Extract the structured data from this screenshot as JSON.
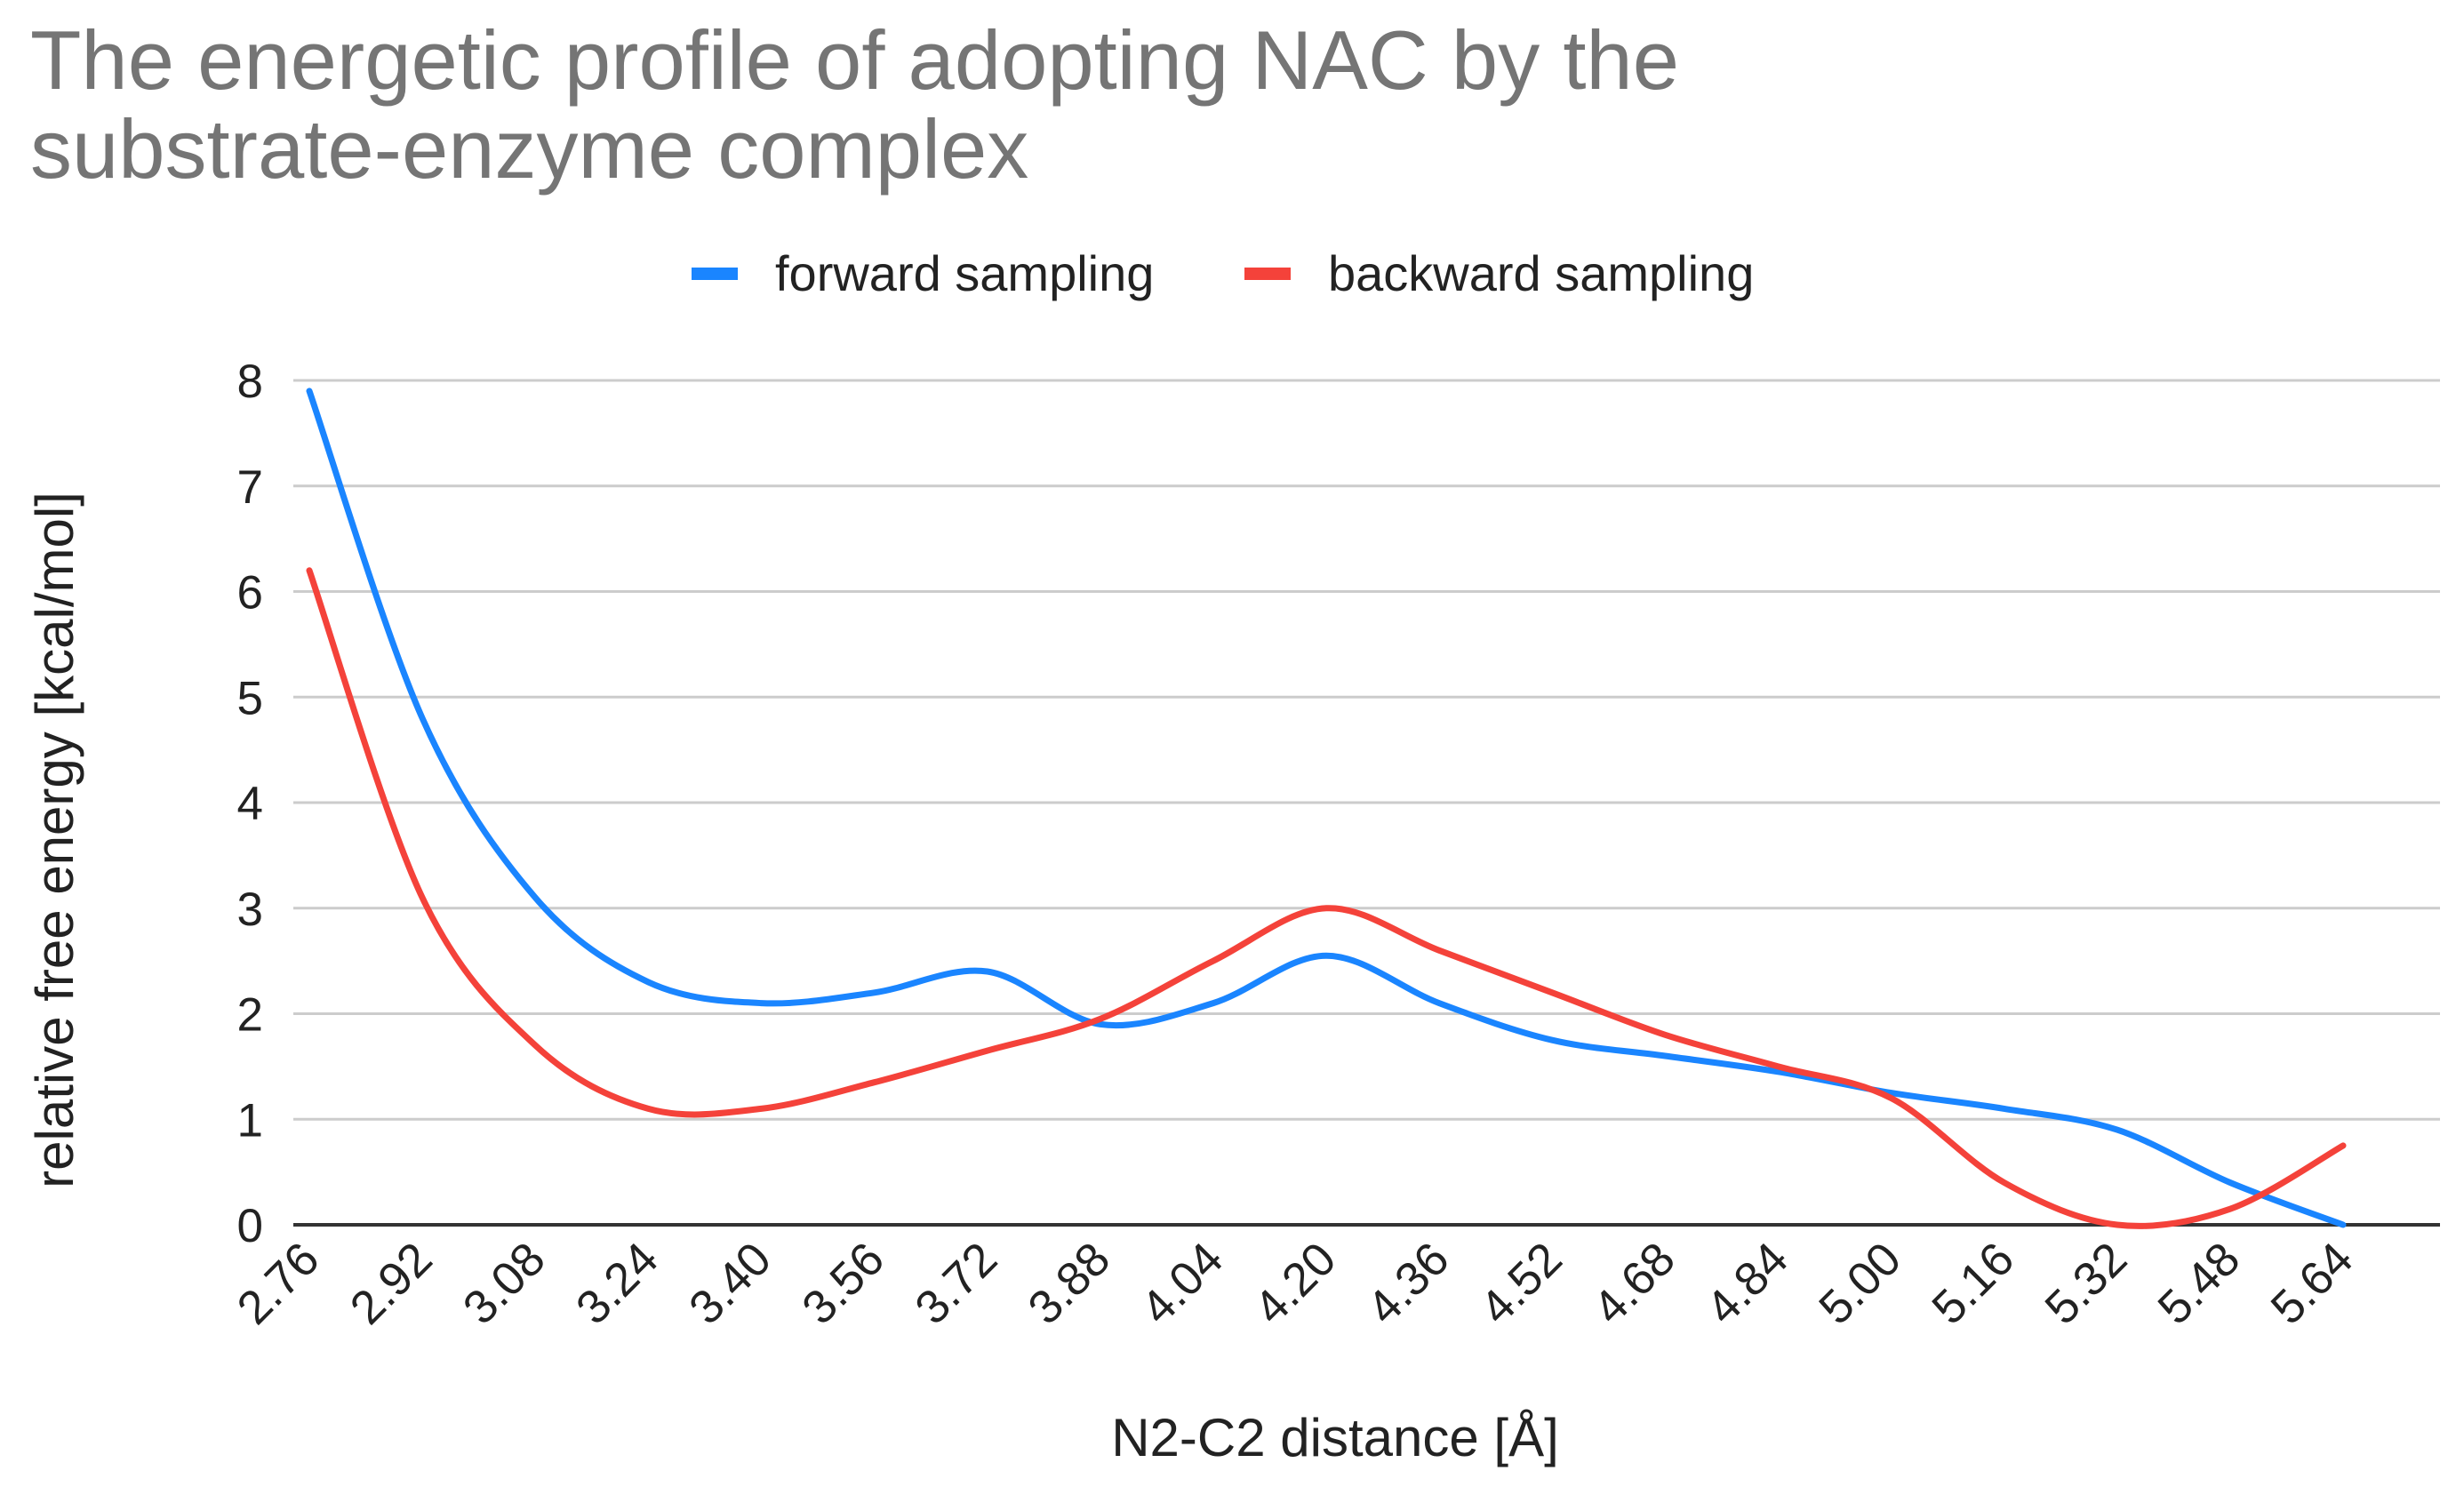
{
  "chart_data": {
    "type": "line",
    "title": "The energetic profile of adopting NAC by the substrate-enzyme complex",
    "title_lines": [
      "The energetic profile of adopting NAC by the",
      "substrate-enzyme complex"
    ],
    "xlabel": "N2-C2 distance [Å]",
    "ylabel": "relative free energy [kcal/mol]",
    "x": [
      2.76,
      2.92,
      3.08,
      3.24,
      3.4,
      3.56,
      3.72,
      3.88,
      4.04,
      4.2,
      4.36,
      4.52,
      4.68,
      4.84,
      5.0,
      5.16,
      5.32,
      5.48,
      5.64
    ],
    "x_labels": [
      "2.76",
      "2.92",
      "3.08",
      "3.24",
      "3.40",
      "3.56",
      "3.72",
      "3.88",
      "4.04",
      "4.20",
      "4.36",
      "4.52",
      "4.68",
      "4.84",
      "5.00",
      "5.16",
      "5.32",
      "5.48",
      "5.64"
    ],
    "xlim": [
      2.76,
      5.64
    ],
    "ylim": [
      0,
      8
    ],
    "y_ticks": [
      0,
      1,
      2,
      3,
      4,
      5,
      6,
      7,
      8
    ],
    "grid": true,
    "legend_position": "top-center",
    "smooth": true,
    "series": [
      {
        "name": "forward sampling",
        "color": "#1a85ff",
        "x": [
          2.76,
          2.92,
          3.08,
          3.24,
          3.4,
          3.56,
          3.72,
          3.88,
          4.04,
          4.2,
          4.36,
          4.52,
          4.68,
          4.84,
          5.0,
          5.16,
          5.32,
          5.48,
          5.64
        ],
        "values": [
          7.9,
          4.8,
          3.1,
          2.3,
          2.1,
          2.2,
          2.4,
          1.9,
          2.1,
          2.55,
          2.1,
          1.75,
          1.6,
          1.45,
          1.25,
          1.1,
          0.9,
          0.4,
          0.0
        ]
      },
      {
        "name": "backward sampling",
        "color": "#f4423a",
        "x": [
          2.76,
          2.92,
          3.08,
          3.24,
          3.4,
          3.56,
          3.72,
          3.88,
          4.04,
          4.2,
          4.36,
          4.52,
          4.68,
          4.84,
          5.0,
          5.16,
          5.32,
          5.48,
          5.64
        ],
        "values": [
          6.2,
          3.1,
          1.7,
          1.1,
          1.1,
          1.35,
          1.65,
          1.95,
          2.5,
          3.0,
          2.6,
          2.2,
          1.8,
          1.5,
          1.2,
          0.4,
          0.0,
          0.15,
          0.75
        ]
      }
    ]
  }
}
